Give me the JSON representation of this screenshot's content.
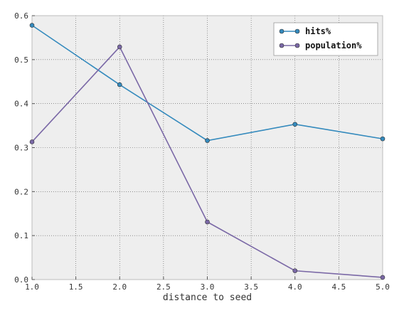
{
  "chart_data": {
    "type": "line",
    "x": [
      1.0,
      2.0,
      3.0,
      4.0,
      5.0
    ],
    "series": [
      {
        "name": "hits%",
        "values": [
          0.578,
          0.443,
          0.316,
          0.353,
          0.32
        ],
        "color": "#348ABD"
      },
      {
        "name": "population%",
        "values": [
          0.313,
          0.529,
          0.131,
          0.02,
          0.005
        ],
        "color": "#7A68A6"
      }
    ],
    "xlabel": "distance to seed",
    "ylabel": "",
    "xlim": [
      1.0,
      5.0
    ],
    "ylim": [
      0.0,
      0.6
    ],
    "xticks": [
      "1.0",
      "1.5",
      "2.0",
      "2.5",
      "3.0",
      "3.5",
      "4.0",
      "4.5",
      "5.0"
    ],
    "yticks": [
      "0.0",
      "0.1",
      "0.2",
      "0.3",
      "0.4",
      "0.5",
      "0.6"
    ],
    "grid": true,
    "legend_position": "top-right",
    "plot_background": "#EEEEEE"
  }
}
